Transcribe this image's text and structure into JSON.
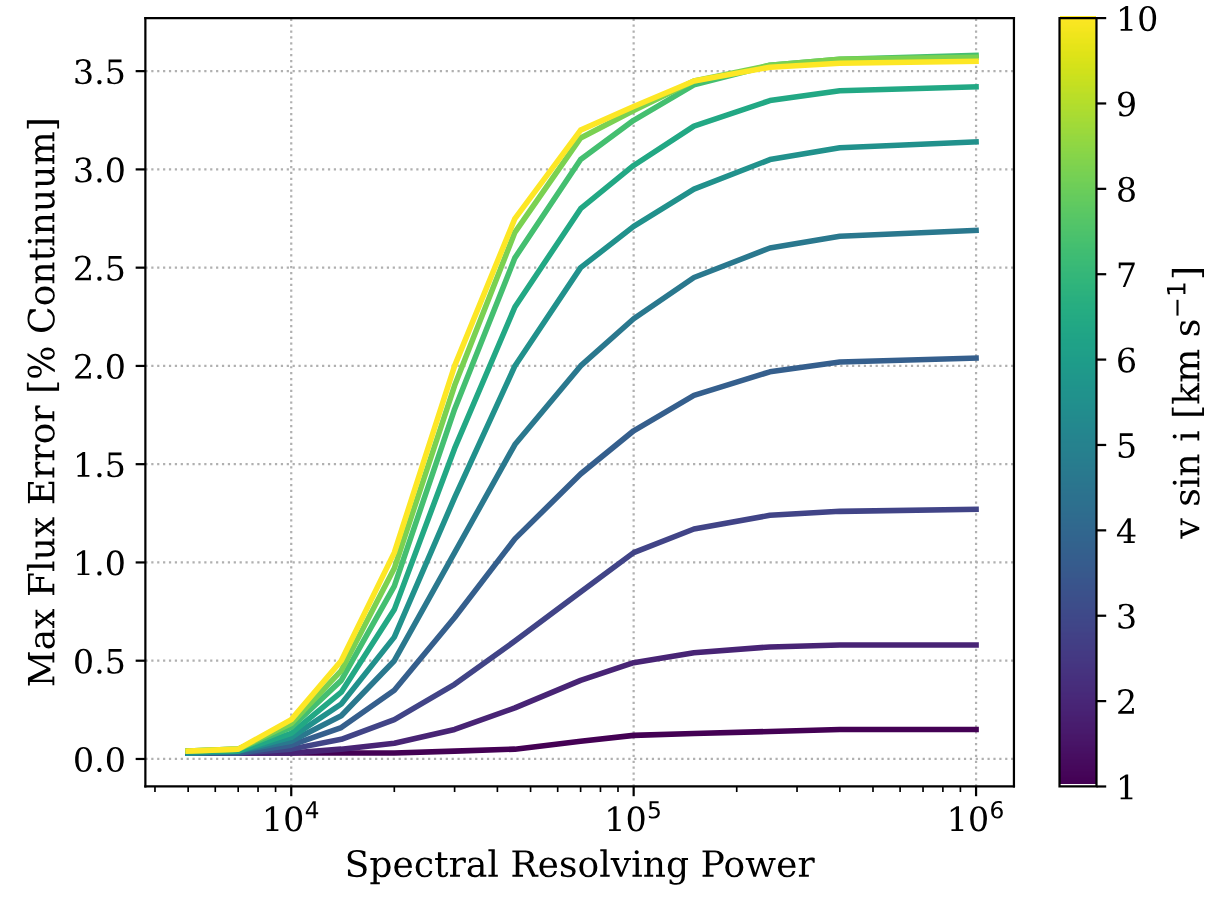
{
  "chart_data": {
    "type": "line",
    "xlabel": "Spectral Resolving Power",
    "ylabel": "Max Flux Error [% Continuum]",
    "clabel": "v sin i [km s$^{−1}$]",
    "x": [
      5000,
      7000,
      10000,
      14000,
      20000,
      30000,
      45000,
      70000,
      100000,
      150000,
      250000,
      400000,
      1000000
    ],
    "log": "x",
    "grid": true,
    "marker": "none",
    "line_style": "solid",
    "xlim": [
      3750,
      1290000
    ],
    "ylim": [
      -0.14,
      3.77
    ],
    "xticks": [
      {
        "value": 10000,
        "label": "10$^{4}$"
      },
      {
        "value": 100000,
        "label": "10$^{5}$"
      },
      {
        "value": 1000000,
        "label": "10$^{6}$"
      }
    ],
    "yticks": [
      {
        "value": 0,
        "label": "0.0"
      },
      {
        "value": 0.5,
        "label": "0.5"
      },
      {
        "value": 1,
        "label": "1.0"
      },
      {
        "value": 1.5,
        "label": "1.5"
      },
      {
        "value": 2,
        "label": "2.0"
      },
      {
        "value": 2.5,
        "label": "2.5"
      },
      {
        "value": 3,
        "label": "3.0"
      },
      {
        "value": 3.5,
        "label": "3.5"
      }
    ],
    "clim": [
      1,
      10
    ],
    "cticks": [
      1,
      2,
      3,
      4,
      5,
      6,
      7,
      8,
      9,
      10
    ],
    "series": [
      {
        "color": "#440154",
        "values": [
          0.03,
          0.03,
          0.03,
          0.03,
          0.03,
          0.04,
          0.05,
          0.09,
          0.12,
          0.13,
          0.14,
          0.15,
          0.15
        ]
      },
      {
        "color": "#482475",
        "values": [
          0.03,
          0.03,
          0.03,
          0.05,
          0.08,
          0.15,
          0.26,
          0.4,
          0.49,
          0.54,
          0.57,
          0.58,
          0.58
        ]
      },
      {
        "color": "#414487",
        "values": [
          0.03,
          0.03,
          0.05,
          0.1,
          0.2,
          0.38,
          0.6,
          0.85,
          1.05,
          1.17,
          1.24,
          1.26,
          1.27
        ]
      },
      {
        "color": "#355f8d",
        "values": [
          0.03,
          0.03,
          0.07,
          0.16,
          0.35,
          0.72,
          1.12,
          1.45,
          1.67,
          1.85,
          1.97,
          2.02,
          2.04
        ]
      },
      {
        "color": "#2a788e",
        "values": [
          0.03,
          0.04,
          0.09,
          0.22,
          0.5,
          1.05,
          1.6,
          2.0,
          2.24,
          2.45,
          2.6,
          2.66,
          2.69
        ]
      },
      {
        "color": "#21918c",
        "values": [
          0.03,
          0.04,
          0.11,
          0.28,
          0.62,
          1.33,
          2.0,
          2.5,
          2.71,
          2.9,
          3.05,
          3.11,
          3.14
        ]
      },
      {
        "color": "#22a884",
        "values": [
          0.04,
          0.04,
          0.13,
          0.34,
          0.76,
          1.58,
          2.3,
          2.8,
          3.02,
          3.22,
          3.35,
          3.4,
          3.42
        ]
      },
      {
        "color": "#44bf70",
        "values": [
          0.04,
          0.05,
          0.16,
          0.4,
          0.88,
          1.78,
          2.55,
          3.05,
          3.25,
          3.43,
          3.53,
          3.56,
          3.58
        ]
      },
      {
        "color": "#7ad151",
        "values": [
          0.04,
          0.05,
          0.18,
          0.45,
          0.97,
          1.9,
          2.68,
          3.16,
          3.3,
          3.45,
          3.53,
          3.56,
          3.57
        ]
      },
      {
        "color": "#fde725",
        "values": [
          0.04,
          0.05,
          0.2,
          0.5,
          1.05,
          2.0,
          2.75,
          3.2,
          3.32,
          3.45,
          3.52,
          3.54,
          3.55
        ]
      }
    ]
  }
}
